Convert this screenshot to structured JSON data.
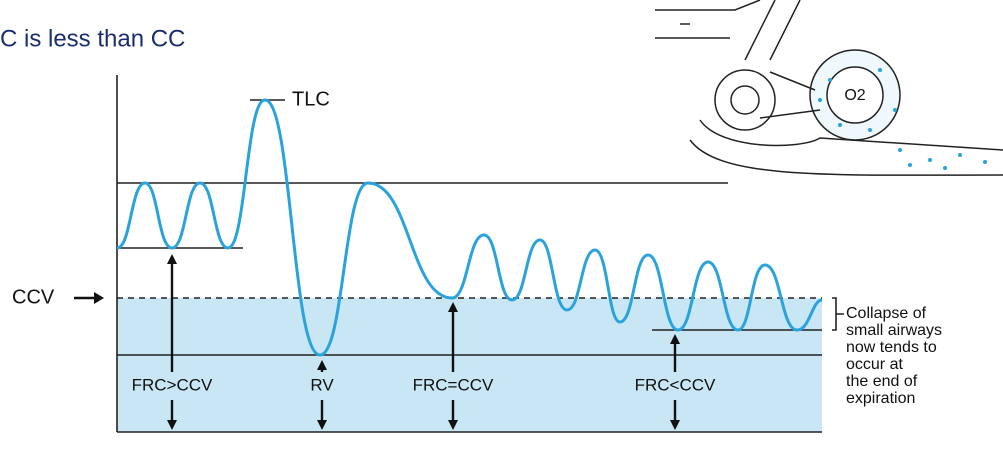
{
  "title": "C is less than CC",
  "labels": {
    "tlc": "TLC",
    "ccv": "CCV",
    "frc_gt": "FRC>CCV",
    "rv": "RV",
    "frc_eq": "FRC=CCV",
    "frc_lt": "FRC<CCV",
    "o2": "O2"
  },
  "note": [
    "Collapse of",
    "small airways",
    "now tends to",
    "occur at",
    "the end of",
    "expiration"
  ]
}
